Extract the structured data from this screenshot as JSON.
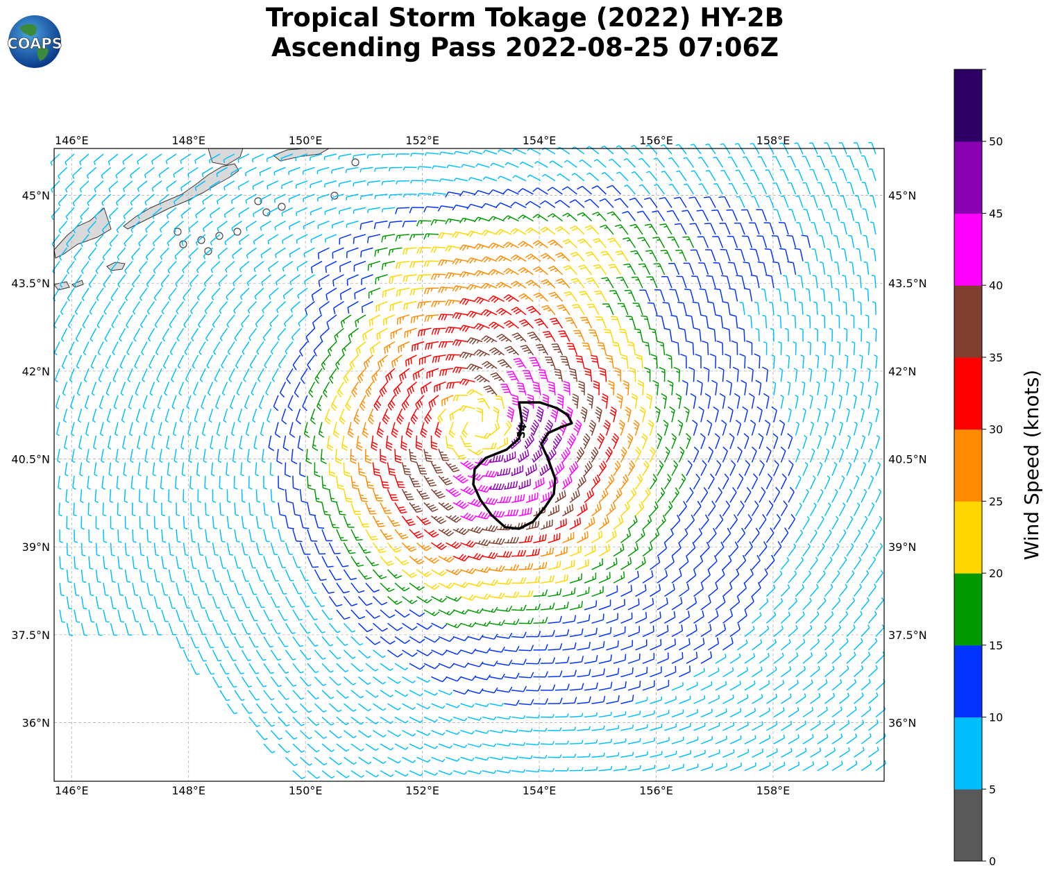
{
  "title": {
    "line1": "Tropical Storm Tokage (2022) HY-2B",
    "line2": "Ascending Pass 2022-08-25 07:06Z"
  },
  "logo": {
    "text": "COAPS"
  },
  "map": {
    "lon_ticks": [
      "146°E",
      "148°E",
      "150°E",
      "152°E",
      "154°E",
      "156°E",
      "158°E"
    ],
    "lat_ticks": [
      "45°N",
      "43.5°N",
      "42°N",
      "40.5°N",
      "39°N",
      "37.5°N",
      "36°N"
    ],
    "lon_values": [
      146,
      148,
      150,
      152,
      154,
      156,
      158
    ],
    "lat_values": [
      45,
      43.5,
      42,
      40.5,
      39,
      37.5,
      36
    ],
    "extent": {
      "lon_min": 145.7,
      "lon_max": 159.9,
      "lat_min": 35.0,
      "lat_max": 45.8
    },
    "contour_label": "34",
    "storm_center": {
      "lon": 152.9,
      "lat": 41.1
    },
    "land_color": "#d9d9d9",
    "grid": true
  },
  "colorbar": {
    "label": "Wind Speed (knots)",
    "ticks": [
      "0",
      "5",
      "10",
      "15",
      "20",
      "25",
      "30",
      "35",
      "40",
      "45",
      "50"
    ],
    "colors": [
      "#595959",
      "#00bfff",
      "#0033ff",
      "#009900",
      "#ffd700",
      "#ff8c00",
      "#ff0000",
      "#804030",
      "#ff00ff",
      "#8b00b2",
      "#2e0066"
    ]
  }
}
